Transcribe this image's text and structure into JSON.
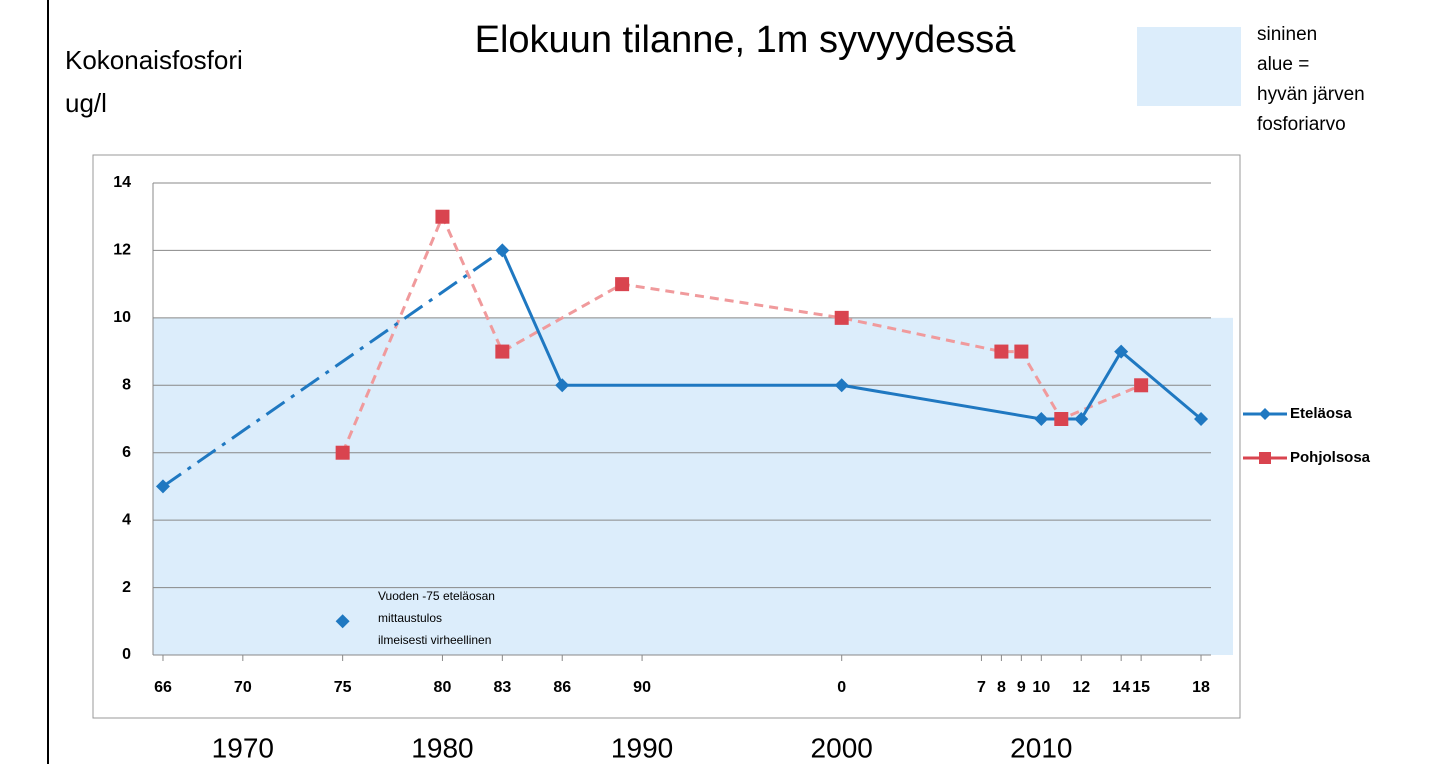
{
  "chart_data": {
    "type": "line",
    "title": "Elokuun tilanne, 1m syvyydessä",
    "y_label": [
      "Kokonaisfosfori",
      "ug/l"
    ],
    "shaded_range": [
      0,
      10
    ],
    "shaded_note": [
      "sininen",
      "alue =",
      "hyvän järven",
      "fosforiarvo"
    ],
    "shaded_color": "#dcedfb",
    "xlim": [
      1965.5,
      2018.5
    ],
    "xticks": [
      {
        "value": 1966,
        "label": "66"
      },
      {
        "value": 1970,
        "label": "70"
      },
      {
        "value": 1975,
        "label": "75"
      },
      {
        "value": 1980,
        "label": "80"
      },
      {
        "value": 1983,
        "label": "83"
      },
      {
        "value": 1986,
        "label": "86"
      },
      {
        "value": 1990,
        "label": "90"
      },
      {
        "value": 2000,
        "label": "0"
      },
      {
        "value": 2007,
        "label": "7"
      },
      {
        "value": 2008,
        "label": "8"
      },
      {
        "value": 2009,
        "label": "9"
      },
      {
        "value": 2010,
        "label": "10"
      },
      {
        "value": 2012,
        "label": "12"
      },
      {
        "value": 2014,
        "label": "14"
      },
      {
        "value": 2015,
        "label": "15"
      },
      {
        "value": 2018,
        "label": "18"
      }
    ],
    "decade_ticks": [
      1970,
      1980,
      1990,
      2000,
      2010
    ],
    "ylim": [
      0,
      14
    ],
    "yticks": [
      0,
      2,
      4,
      6,
      8,
      10,
      12,
      14
    ],
    "grid": true,
    "series": [
      {
        "name": "Eteläosa",
        "color": "#1f78c1",
        "marker": "diamond",
        "x": [
          1966,
          1983,
          1986,
          2000,
          2010,
          2012,
          2014,
          2018
        ],
        "values": [
          5,
          12,
          8,
          8,
          7,
          7,
          9,
          7
        ]
      },
      {
        "name": "Pohjolsosa",
        "color": "#d9444f",
        "line_color": "#f09a9c",
        "marker": "square",
        "x": [
          1975,
          1980,
          1983,
          1989,
          2000,
          2008,
          2009,
          2011,
          2015
        ],
        "values": [
          6,
          13,
          9,
          11,
          10,
          9,
          9,
          7,
          8
        ]
      }
    ],
    "annotation": {
      "text": [
        "Vuoden -75 eteläosan",
        "mittaustulos",
        "ilmeisesti virheellinen"
      ],
      "x": 1975,
      "y": 1
    }
  }
}
